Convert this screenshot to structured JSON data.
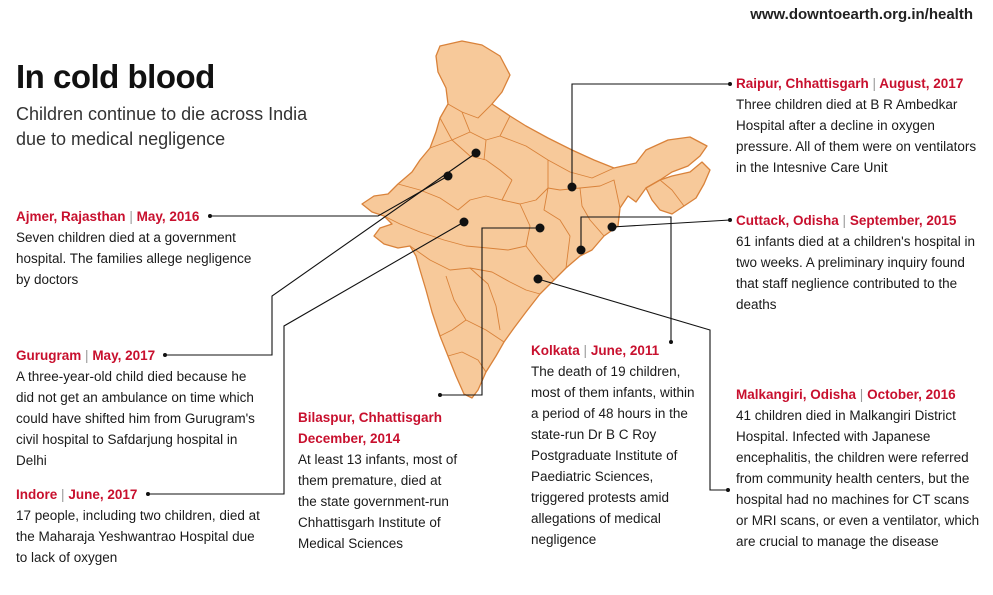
{
  "header": {
    "url": "www.downtoearth.org.in/health",
    "title": "In cold blood",
    "subtitle": "Children continue to die across India due to medical negligence"
  },
  "colors": {
    "map_fill": "#f7c99a",
    "map_border": "#d9823a",
    "heading": "#c8102e",
    "text": "#1a1a1a",
    "leader": "#111111"
  },
  "incidents": {
    "ajmer": {
      "place": "Ajmer, Rajasthan",
      "date": "May, 2016",
      "text": "Seven children died at a government hospital. The families allege negligence by doctors"
    },
    "gurugram": {
      "place": "Gurugram",
      "date": "May, 2017",
      "text": "A three-year-old child died because he did not get an ambulance on time which could have shifted him from Gurugram's civil hospital to Safdarjung hospital in Delhi"
    },
    "indore": {
      "place": "Indore",
      "date": "June, 2017",
      "text": "17 people, including two children, died at the Maharaja Yeshwantrao Hospital due to lack of oxygen"
    },
    "bilaspur": {
      "place": "Bilaspur, Chhattisgarh",
      "date": "December, 2014",
      "text": "At least 13 infants, most of them premature, died at the state government-run Chhattisgarh Institute of Medical Sciences"
    },
    "kolkata": {
      "place": "Kolkata",
      "date": "June, 2011",
      "text": "The death of 19 children, most of them infants, within a period of 48 hours in the state-run Dr B C Roy Postgraduate Institute of Paediatric Sciences, triggered protests amid allegations of medical negligence"
    },
    "raipur": {
      "place": "Raipur, Chhattisgarh",
      "date": "August, 2017",
      "text": "Three children died at B R Ambedkar Hospital after a decline in oxygen pressure. All of them were on ventilators in the Intesnive Care Unit"
    },
    "cuttack": {
      "place": "Cuttack, Odisha",
      "date": "September, 2015",
      "text": "61 infants died at a children's hospital in two weeks. A preliminary inquiry found that staff neglience contributed to the deaths"
    },
    "malkangiri": {
      "place": "Malkangiri, Odisha",
      "date": "October, 2016",
      "text": "41 children died in Malkangiri District Hospital. Infected with Japanese encephalitis, the children were referred from community health centers, but the hospital had no machines for CT scans or MRI scans, or even a ventilator, which are crucial to manage the disease"
    }
  }
}
